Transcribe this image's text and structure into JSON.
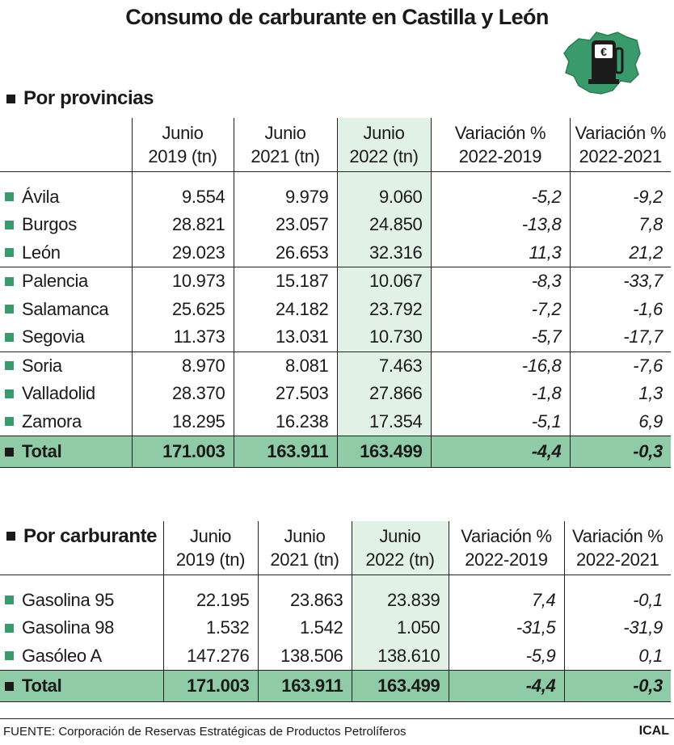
{
  "title": "Consumo de carburante en Castilla y León",
  "icon": {
    "name": "fuel-pump-map-icon",
    "symbol": "€",
    "map_color": "#3a9a6b"
  },
  "colors": {
    "highlight_column": "#e2f1e6",
    "total_row": "#8fcba6",
    "bullet": "#3a9a6b"
  },
  "chart_data": [
    {
      "type": "table",
      "title": "Por provincias",
      "columns": [
        "Junio 2019 (tn)",
        "Junio 2021 (tn)",
        "Junio 2022 (tn)",
        "Variación % 2022-2019",
        "Variación % 2022-2021"
      ],
      "header": [
        [
          "Junio",
          "2019 (tn)"
        ],
        [
          "Junio",
          "2021 (tn)"
        ],
        [
          "Junio",
          "2022 (tn)"
        ],
        [
          "Variación %",
          "2022-2019"
        ],
        [
          "Variación %",
          "2022-2021"
        ]
      ],
      "rows": [
        {
          "label": "Ávila",
          "values": [
            "9.554",
            "9.979",
            "9.060",
            "-5,2",
            "-9,2"
          ]
        },
        {
          "label": "Burgos",
          "values": [
            "28.821",
            "23.057",
            "24.850",
            "-13,8",
            "7,8"
          ]
        },
        {
          "label": "León",
          "values": [
            "29.023",
            "26.653",
            "32.316",
            "11,3",
            "21,2"
          ]
        },
        {
          "label": "Palencia",
          "values": [
            "10.973",
            "15.187",
            "10.067",
            "-8,3",
            "-33,7"
          ]
        },
        {
          "label": "Salamanca",
          "values": [
            "25.625",
            "24.182",
            "23.792",
            "-7,2",
            "-1,6"
          ]
        },
        {
          "label": "Segovia",
          "values": [
            "11.373",
            "13.031",
            "10.730",
            "-5,7",
            "-17,7"
          ]
        },
        {
          "label": "Soria",
          "values": [
            "8.970",
            "8.081",
            "7.463",
            "-16,8",
            "-7,6"
          ]
        },
        {
          "label": "Valladolid",
          "values": [
            "28.370",
            "27.503",
            "27.866",
            "-1,8",
            "1,3"
          ]
        },
        {
          "label": "Zamora",
          "values": [
            "18.295",
            "16.238",
            "17.354",
            "-5,1",
            "6,9"
          ]
        }
      ],
      "total": {
        "label": "Total",
        "values": [
          "171.003",
          "163.911",
          "163.499",
          "-4,4",
          "-0,3"
        ]
      }
    },
    {
      "type": "table",
      "title": "Por carburante",
      "columns": [
        "Junio 2019 (tn)",
        "Junio 2021 (tn)",
        "Junio 2022 (tn)",
        "Variación % 2022-2019",
        "Variación % 2022-2021"
      ],
      "header": [
        [
          "Junio",
          "2019 (tn)"
        ],
        [
          "Junio",
          "2021 (tn)"
        ],
        [
          "Junio",
          "2022 (tn)"
        ],
        [
          "Variación %",
          "2022-2019"
        ],
        [
          "Variación %",
          "2022-2021"
        ]
      ],
      "rows": [
        {
          "label": "Gasolina 95",
          "values": [
            "22.195",
            "23.863",
            "23.839",
            "7,4",
            "-0,1"
          ]
        },
        {
          "label": "Gasolina 98",
          "values": [
            "1.532",
            "1.542",
            "1.050",
            "-31,5",
            "-31,9"
          ]
        },
        {
          "label": "Gasóleo A",
          "values": [
            "147.276",
            "138.506",
            "138.610",
            "-5,9",
            "0,1"
          ]
        }
      ],
      "total": {
        "label": "Total",
        "values": [
          "171.003",
          "163.911",
          "163.499",
          "-4,4",
          "-0,3"
        ]
      }
    }
  ],
  "footer": {
    "source": "FUENTE: Corporación de Reservas Estratégicas de Productos Petrolíferos",
    "credit": "ICAL"
  }
}
